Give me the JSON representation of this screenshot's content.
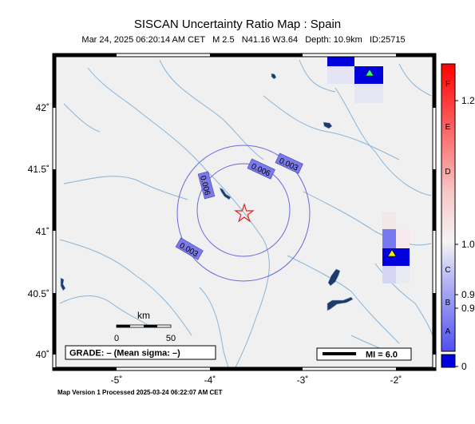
{
  "title": "SISCAN Uncertainty Ratio Map : Spain",
  "subtitle": "Mar 24, 2025 06:20:14 AM CET   M 2.5   N41.16 W3.64   Depth: 10.9km   ID:25715",
  "footer": "Map Version 1 Processed 2025-03-24 06:22:07 AM CET",
  "axes": {
    "y_ticks": [
      "42˚",
      "41.5˚",
      "41˚",
      "40.5˚",
      "40˚"
    ],
    "x_ticks": [
      "-5˚",
      "-4˚",
      "-3˚",
      "-2˚"
    ]
  },
  "contours": {
    "labels": [
      "0.003",
      "0.006",
      "0.006",
      "0.003"
    ],
    "color": "#6a6adc"
  },
  "scale_bar": {
    "unit": "km",
    "min": "0",
    "max": "50"
  },
  "grade_box": {
    "text": "GRADE: – (Mean sigma: –)"
  },
  "mi_box": {
    "text": "MI = 6.0"
  },
  "colorbar": {
    "grade_letters": [
      "F",
      "E",
      "D",
      "C",
      "B",
      "A"
    ],
    "values": [
      "1.2",
      "1.0",
      "0.9",
      "0.9",
      "0"
    ]
  },
  "markers": {
    "epicenter": "star-icon",
    "stations": [
      "station-triangle-icon",
      "station-triangle-icon"
    ]
  },
  "colors": {
    "blue": "#0000dd",
    "star": "#e82020",
    "river": "#8ab4d8",
    "land": "#f0f0f0"
  }
}
